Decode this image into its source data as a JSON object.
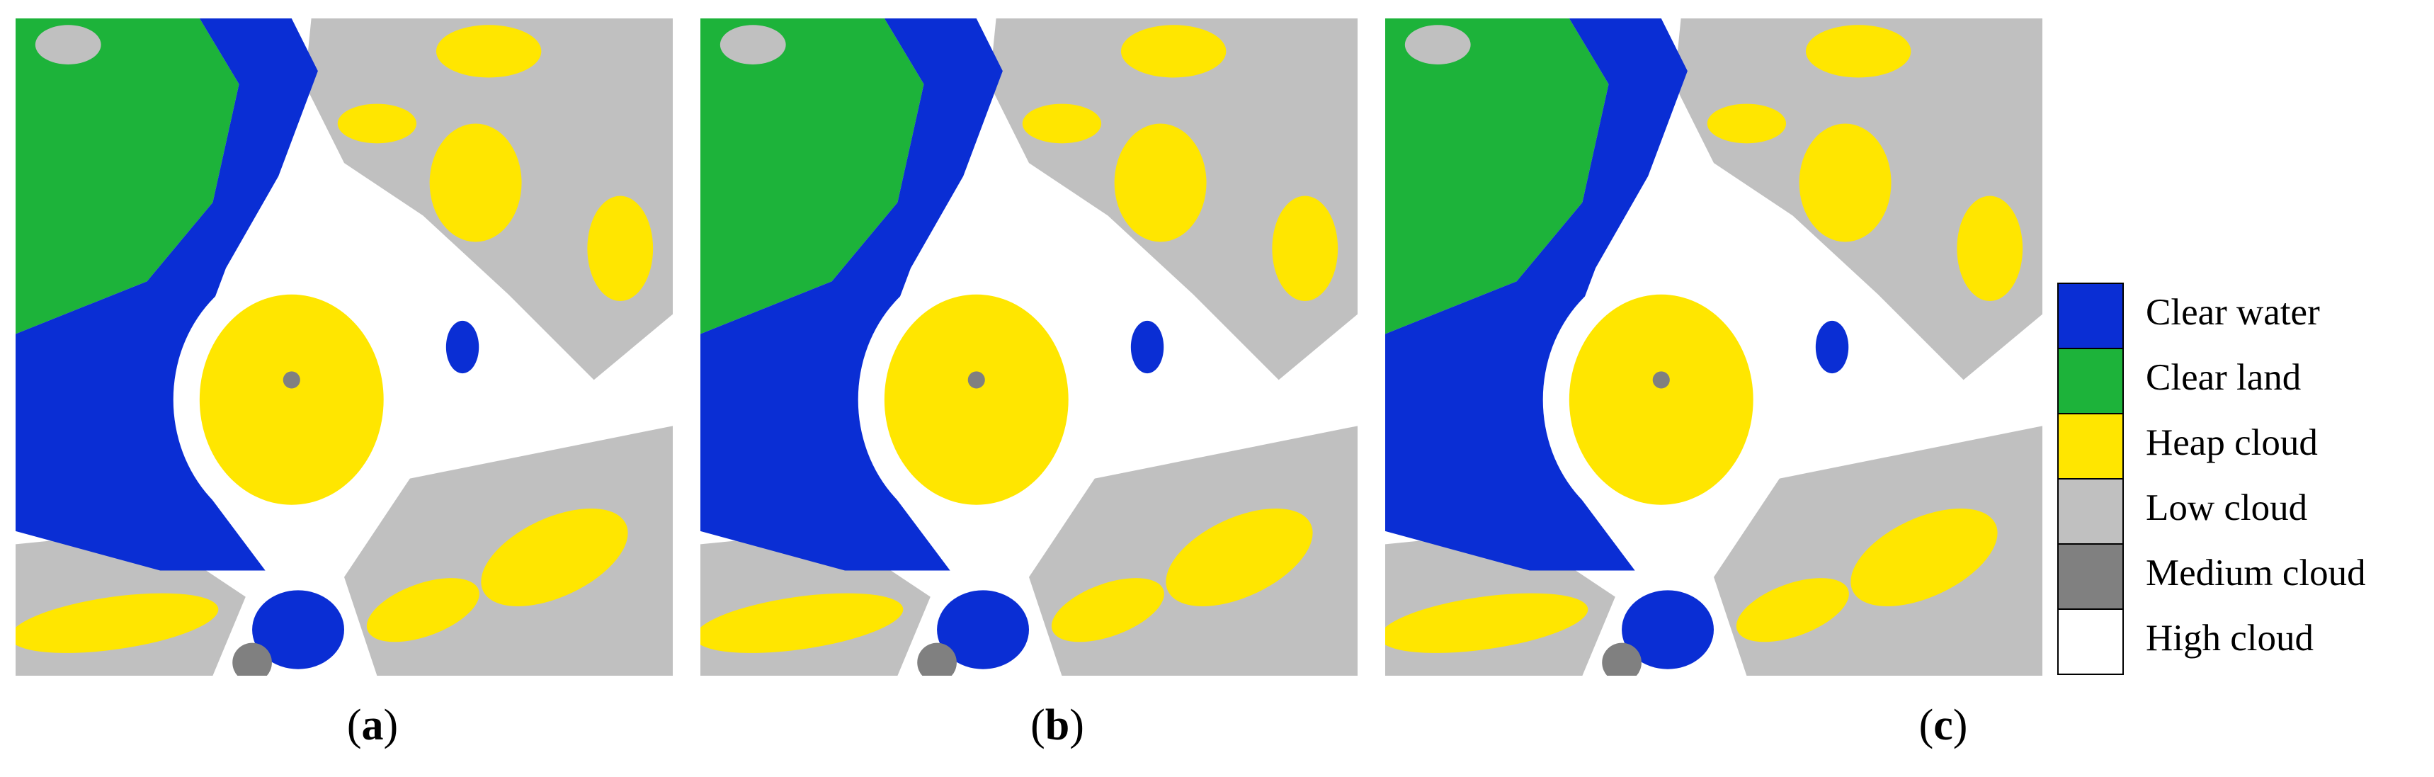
{
  "panels": [
    {
      "open": "(",
      "letter": "a",
      "close": ")"
    },
    {
      "open": "(",
      "letter": "b",
      "close": ")"
    },
    {
      "open": "(",
      "letter": "c",
      "close": ")"
    }
  ],
  "legend": [
    {
      "name": "Clear water",
      "color": "#0a2ed4"
    },
    {
      "name": "Clear land",
      "color": "#1db33a"
    },
    {
      "name": "Heap cloud",
      "color": "#ffe600"
    },
    {
      "name": "Low cloud",
      "color": "#c0c0c0"
    },
    {
      "name": "Medium cloud",
      "color": "#808080"
    },
    {
      "name": "High cloud",
      "color": "#ffffff"
    }
  ]
}
